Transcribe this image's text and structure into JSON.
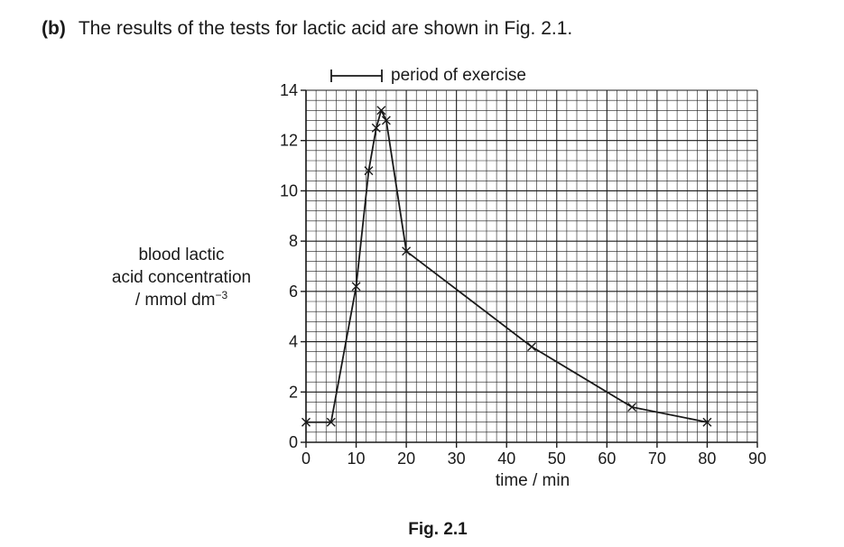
{
  "question": {
    "number": "(b)",
    "text": "The results of the tests for lactic acid are shown in Fig. 2.1."
  },
  "figure_caption": "Fig. 2.1",
  "chart_data": {
    "type": "line",
    "xlabel": "time / min",
    "ylabel_lines": [
      "blood lactic",
      "acid concentration",
      "/ mmol dm"
    ],
    "ylabel_unit_superscript": "−3",
    "xlim": [
      0,
      90
    ],
    "ylim": [
      0,
      14
    ],
    "x_ticks": [
      0,
      10,
      20,
      30,
      40,
      50,
      60,
      70,
      80,
      90
    ],
    "y_ticks": [
      0,
      2,
      4,
      6,
      8,
      10,
      12,
      14
    ],
    "x_minor_step": 2,
    "y_minor_step": 0.4,
    "grid": true,
    "marker": "x",
    "line_color": "#1a1a1a",
    "series": [
      {
        "x": [
          0,
          5,
          10,
          12.5,
          14,
          15,
          16,
          20,
          45,
          65,
          80
        ],
        "y": [
          0.8,
          0.8,
          6.2,
          10.8,
          12.5,
          13.2,
          12.8,
          7.6,
          3.8,
          1.4,
          0.8
        ]
      }
    ],
    "annotations": [
      {
        "type": "interval",
        "label": "period of exercise",
        "x_start": 5,
        "x_end": 15
      }
    ]
  }
}
